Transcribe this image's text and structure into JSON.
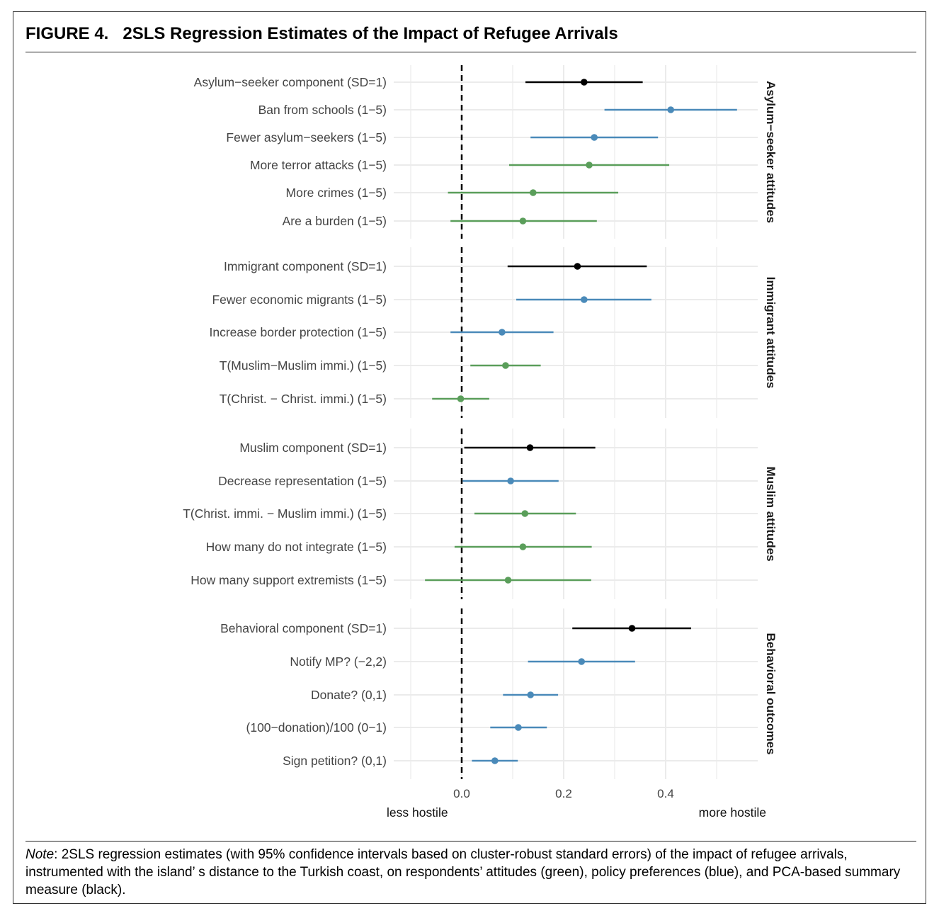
{
  "figure": {
    "title": "FIGURE 4.   2SLS Regression Estimates of the Impact of Refugee Arrivals",
    "note_label": "Note",
    "note_text": ": 2SLS regression estimates (with 95% confidence intervals based on cluster-robust standard errors) of the impact of refugee arrivals, instrumented with the island’ s distance to the Turkish coast, on respondents’ attitudes (green), policy preferences (blue), and PCA-based summary measure (black)."
  },
  "chart_data": {
    "type": "forest",
    "title": "",
    "xlabel_left": "less hostile",
    "xlabel_right": "more hostile",
    "xlim": [
      -0.1,
      0.58
    ],
    "xticks": [
      0.0,
      0.2,
      0.4
    ],
    "xtick_labels": [
      "0.0",
      "0.2",
      "0.4"
    ],
    "reference_line": {
      "x": 0,
      "style": "dashed"
    },
    "grid": true,
    "colors": {
      "black": "#000000",
      "blue": "#4a8ab9",
      "green": "#5a9e5a",
      "grid": "#ebebeb"
    },
    "panels": [
      {
        "name": "Asylum−seeker attitudes",
        "rows": [
          {
            "label": "Asylum−seeker component (SD=1)",
            "estimate": 0.24,
            "lower": 0.125,
            "upper": 0.355,
            "color": "black"
          },
          {
            "label": "Ban from schools (1−5)",
            "estimate": 0.41,
            "lower": 0.28,
            "upper": 0.54,
            "color": "blue"
          },
          {
            "label": "Fewer asylum−seekers (1−5)",
            "estimate": 0.26,
            "lower": 0.135,
            "upper": 0.385,
            "color": "blue"
          },
          {
            "label": "More terror attacks (1−5)",
            "estimate": 0.25,
            "lower": 0.093,
            "upper": 0.407,
            "color": "green"
          },
          {
            "label": "More crimes (1−5)",
            "estimate": 0.14,
            "lower": -0.027,
            "upper": 0.307,
            "color": "green"
          },
          {
            "label": "Are a burden (1−5)",
            "estimate": 0.12,
            "lower": -0.022,
            "upper": 0.265,
            "color": "green"
          }
        ]
      },
      {
        "name": "Immigrant attitudes",
        "rows": [
          {
            "label": "Immigrant component (SD=1)",
            "estimate": 0.227,
            "lower": 0.09,
            "upper": 0.363,
            "color": "black"
          },
          {
            "label": "Fewer economic migrants (1−5)",
            "estimate": 0.24,
            "lower": 0.107,
            "upper": 0.372,
            "color": "blue"
          },
          {
            "label": "Increase border protection (1−5)",
            "estimate": 0.079,
            "lower": -0.022,
            "upper": 0.18,
            "color": "blue"
          },
          {
            "label": "T(Muslim−Muslim immi.) (1−5)",
            "estimate": 0.086,
            "lower": 0.017,
            "upper": 0.155,
            "color": "green"
          },
          {
            "label": "T(Christ. − Christ. immi.) (1−5)",
            "estimate": -0.002,
            "lower": -0.058,
            "upper": 0.054,
            "color": "green"
          }
        ]
      },
      {
        "name": "Muslim attitudes",
        "rows": [
          {
            "label": "Muslim component (SD=1)",
            "estimate": 0.134,
            "lower": 0.005,
            "upper": 0.262,
            "color": "black"
          },
          {
            "label": "Decrease representation (1−5)",
            "estimate": 0.096,
            "lower": 0.002,
            "upper": 0.19,
            "color": "blue"
          },
          {
            "label": "T(Christ. immi. − Muslim immi.) (1−5)",
            "estimate": 0.124,
            "lower": 0.025,
            "upper": 0.224,
            "color": "green"
          },
          {
            "label": "How many do not integrate (1−5)",
            "estimate": 0.12,
            "lower": -0.014,
            "upper": 0.255,
            "color": "green"
          },
          {
            "label": "How many support extremists (1−5)",
            "estimate": 0.091,
            "lower": -0.072,
            "upper": 0.254,
            "color": "green"
          }
        ]
      },
      {
        "name": "Behavioral outcomes",
        "rows": [
          {
            "label": "Behavioral component (SD=1)",
            "estimate": 0.334,
            "lower": 0.217,
            "upper": 0.45,
            "color": "black"
          },
          {
            "label": "Notify MP? (−2,2)",
            "estimate": 0.235,
            "lower": 0.13,
            "upper": 0.34,
            "color": "blue"
          },
          {
            "label": "Donate? (0,1)",
            "estimate": 0.135,
            "lower": 0.081,
            "upper": 0.189,
            "color": "blue"
          },
          {
            "label": "(100−donation)/100 (0−1)",
            "estimate": 0.111,
            "lower": 0.056,
            "upper": 0.167,
            "color": "blue"
          },
          {
            "label": "Sign petition? (0,1)",
            "estimate": 0.065,
            "lower": 0.02,
            "upper": 0.11,
            "color": "blue"
          }
        ]
      }
    ]
  }
}
